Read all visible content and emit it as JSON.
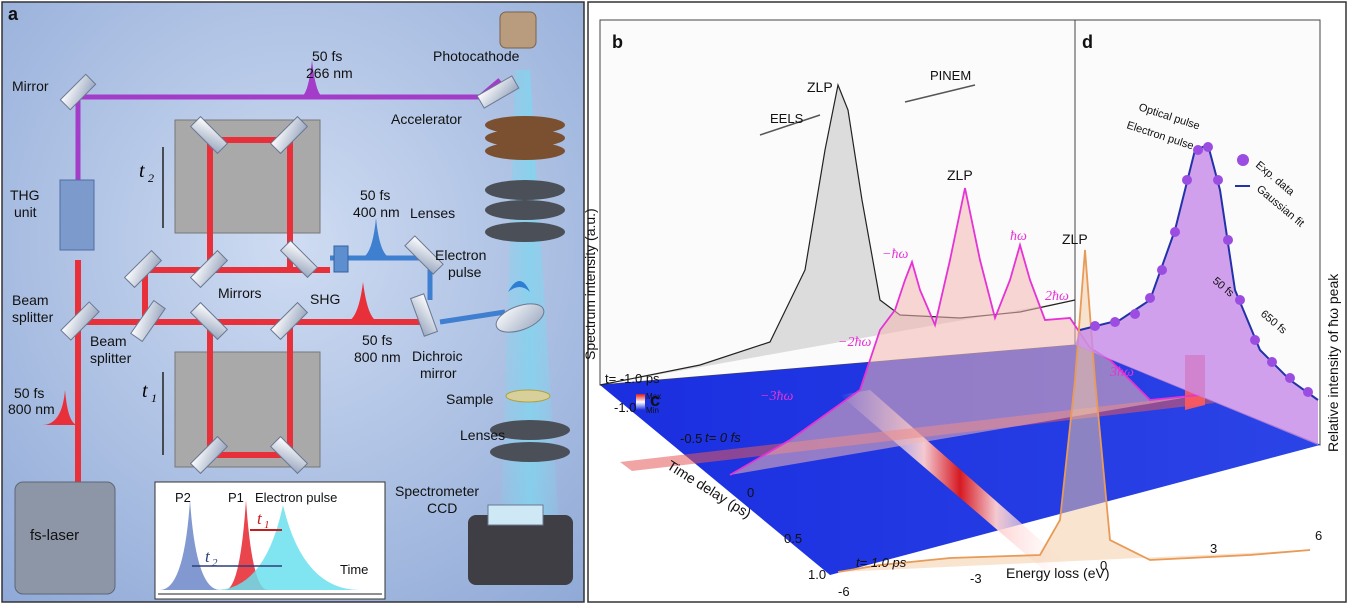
{
  "panel_a": {
    "letter": "a",
    "photocathode": "Photocathode",
    "pulse_266": [
      "50 fs",
      "266 nm"
    ],
    "mirror": "Mirror",
    "accelerator": "Accelerator",
    "thg": [
      "THG",
      "unit"
    ],
    "t2": "t",
    "t2_sub": "2",
    "t1": "t",
    "t1_sub": "1",
    "pulse_400": [
      "50 fs",
      "400 nm"
    ],
    "lenses_top": "Lenses",
    "electron_pulse": [
      "Electron",
      "pulse"
    ],
    "mirrors": "Mirrors",
    "shg": "SHG",
    "beam_splitter_1": [
      "Beam",
      "splitter"
    ],
    "beam_splitter_2": [
      "Beam",
      "splitter"
    ],
    "pulse_800_mid": [
      "50 fs",
      "800 nm"
    ],
    "dichroic": [
      "Dichroic",
      "mirror"
    ],
    "sample": "Sample",
    "pulse_800_left": [
      "50 fs",
      "800 nm"
    ],
    "lenses_bottom": "Lenses",
    "fs_laser": "fs-laser",
    "spectrometer": [
      "Spectrometer",
      "CCD"
    ],
    "inset": {
      "p2": "P2",
      "p1": "P1",
      "electron_pulse": "Electron pulse",
      "t1": "t",
      "t1_sub": "1",
      "t2": "t",
      "t2_sub": "2",
      "time": "Time"
    }
  },
  "panel_b": {
    "letter": "b",
    "eels": "EELS",
    "pinem": "PINEM",
    "zlp_gray": "ZLP",
    "zlp_pink": "ZLP",
    "zlp_orange": "ZLP",
    "minus_hw": "−ħω",
    "hw": "ħω",
    "two_hw": "2ħω",
    "minus_two_hw": "−2ħω",
    "minus_three_hw": "−3ħω",
    "three_hw": "3ħω",
    "ylabel": "Spectrum intensity (a.u.)",
    "t_minus": "t= -1.0 ps",
    "t_zero": "t= 0 fs",
    "t_plus": "t= 1.0 ps",
    "xlabel": "Energy loss (eV)",
    "time_axis_label": "Time delay (ps)",
    "time_ticks": [
      "-1.0",
      "-0.5",
      "0",
      "0.5",
      "1.0"
    ],
    "energy_ticks": [
      "-6",
      "-3",
      "0",
      "3",
      "6"
    ]
  },
  "panel_c": {
    "letter": "c",
    "max": "Max",
    "min": "Min"
  },
  "panel_d": {
    "letter": "d",
    "optical_pulse": "Optical pulse",
    "electron_pulse": "Electron pulse",
    "exp_data": "Exp. data",
    "gaussian_fit": "Gaussian fit",
    "fs50": "50 fs",
    "fs650": "650 fs",
    "ylabel": "Relative intensity of ħω peak"
  },
  "colors": {
    "uv_beam": "#a33cc8",
    "red_beam": "#e8303a",
    "blue_beam": "#3f7fd0",
    "panel_a_bg": "#9db6df",
    "map_bg": "#1a2ee0",
    "pink": "#e633d6",
    "orange": "#e89a57",
    "purple_fill": "#c78ae8"
  }
}
